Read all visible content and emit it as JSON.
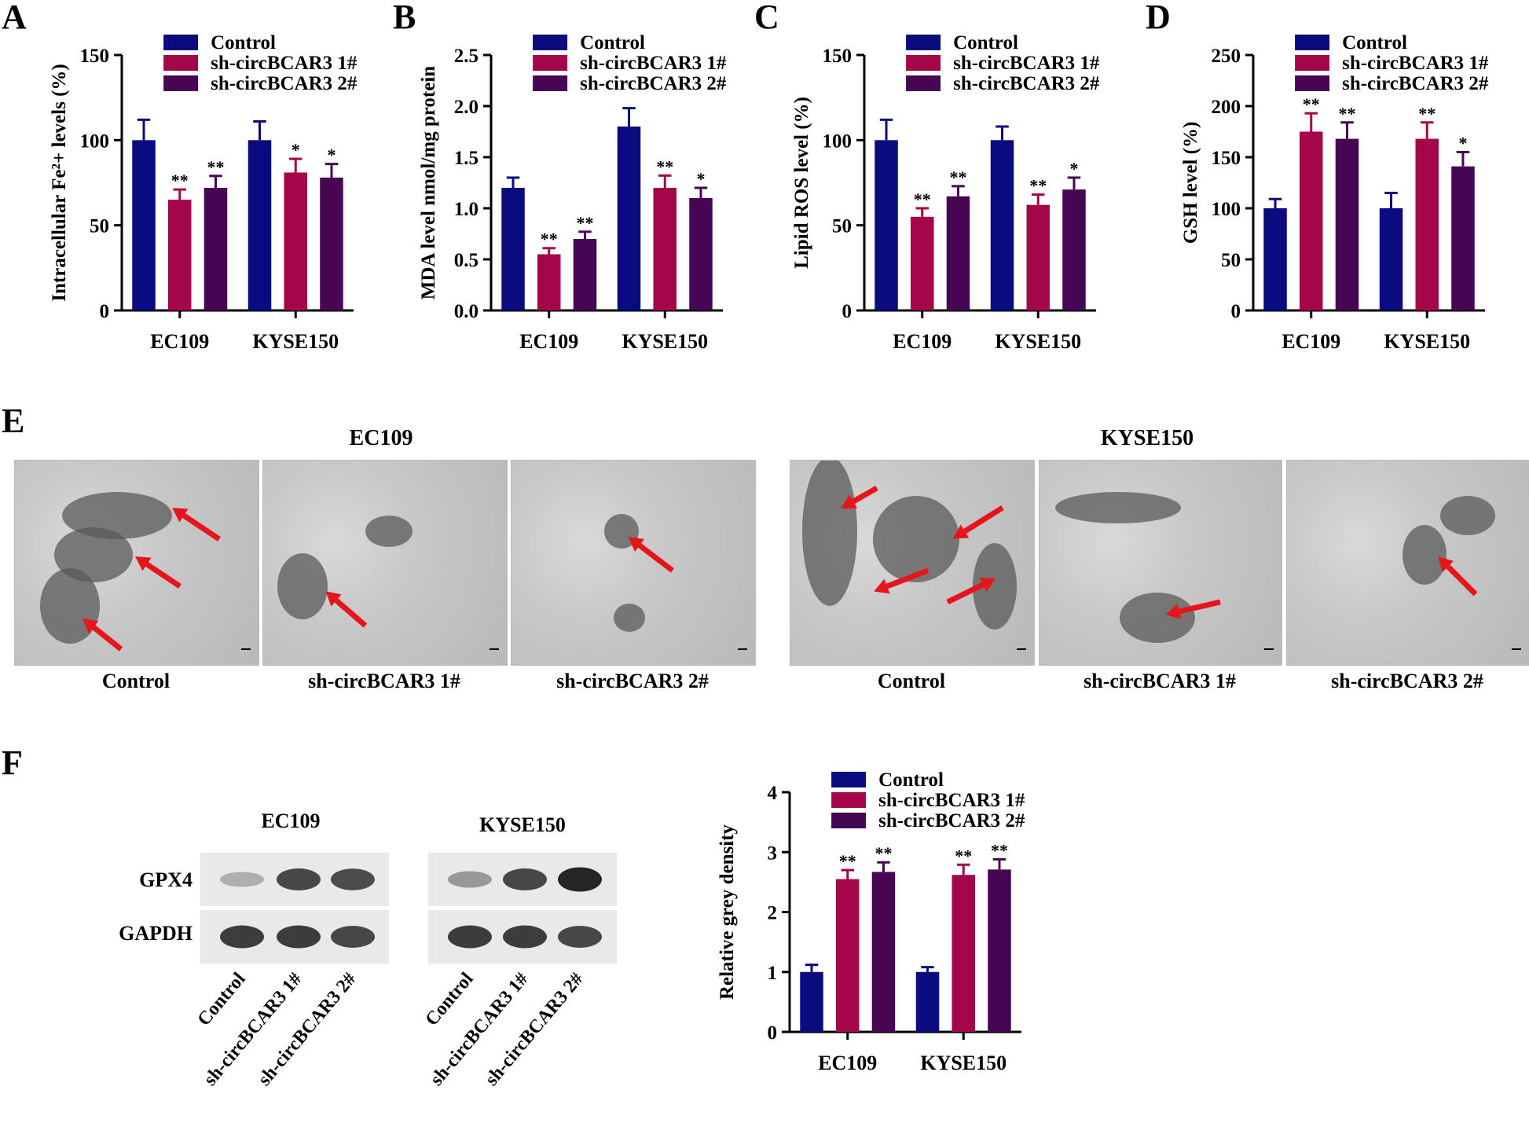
{
  "panels": {
    "A": "A",
    "B": "B",
    "C": "C",
    "D": "D",
    "E": "E",
    "F": "F"
  },
  "colors": {
    "control": "#0b0b80",
    "sh1": "#a5064a",
    "sh2": "#470654",
    "arrow": "#e8141c"
  },
  "chart_data": [
    {
      "id": "A",
      "type": "bar",
      "ylabel": "Intracellular Fe²+ levels (%)",
      "ylim": [
        0,
        150
      ],
      "yticks": [
        0,
        50,
        100,
        150
      ],
      "categories": [
        "EC109",
        "KYSE150"
      ],
      "series": [
        {
          "name": "Control",
          "values": [
            100,
            100
          ],
          "errors": [
            12,
            11
          ],
          "sig": [
            "",
            ""
          ]
        },
        {
          "name": "sh-circBCAR3 1#",
          "values": [
            65,
            81
          ],
          "errors": [
            6,
            8
          ],
          "sig": [
            "**",
            "*"
          ]
        },
        {
          "name": "sh-circBCAR3 2#",
          "values": [
            72,
            78
          ],
          "errors": [
            7,
            8
          ],
          "sig": [
            "**",
            "*"
          ]
        }
      ]
    },
    {
      "id": "B",
      "type": "bar",
      "ylabel": "MDA level nmol/mg protein",
      "ylim": [
        0,
        2.5
      ],
      "yticks": [
        0.0,
        0.5,
        1.0,
        1.5,
        2.0,
        2.5
      ],
      "categories": [
        "EC109",
        "KYSE150"
      ],
      "series": [
        {
          "name": "Control",
          "values": [
            1.2,
            1.8
          ],
          "errors": [
            0.1,
            0.18
          ],
          "sig": [
            "",
            ""
          ]
        },
        {
          "name": "sh-circBCAR3 1#",
          "values": [
            0.55,
            1.2
          ],
          "errors": [
            0.06,
            0.12
          ],
          "sig": [
            "**",
            "**"
          ]
        },
        {
          "name": "sh-circBCAR3 2#",
          "values": [
            0.7,
            1.1
          ],
          "errors": [
            0.07,
            0.1
          ],
          "sig": [
            "**",
            "*"
          ]
        }
      ]
    },
    {
      "id": "C",
      "type": "bar",
      "ylabel": "Lipid ROS level (%)",
      "ylim": [
        0,
        150
      ],
      "yticks": [
        0,
        50,
        100,
        150
      ],
      "categories": [
        "EC109",
        "KYSE150"
      ],
      "series": [
        {
          "name": "Control",
          "values": [
            100,
            100
          ],
          "errors": [
            12,
            8
          ],
          "sig": [
            "",
            ""
          ]
        },
        {
          "name": "sh-circBCAR3 1#",
          "values": [
            55,
            62
          ],
          "errors": [
            5,
            6
          ],
          "sig": [
            "**",
            "**"
          ]
        },
        {
          "name": "sh-circBCAR3 2#",
          "values": [
            67,
            71
          ],
          "errors": [
            6,
            7
          ],
          "sig": [
            "**",
            "*"
          ]
        }
      ]
    },
    {
      "id": "D",
      "type": "bar",
      "ylabel": "GSH level (%)",
      "ylim": [
        0,
        250
      ],
      "yticks": [
        0,
        50,
        100,
        150,
        200,
        250
      ],
      "categories": [
        "EC109",
        "KYSE150"
      ],
      "series": [
        {
          "name": "Control",
          "values": [
            100,
            100
          ],
          "errors": [
            9,
            15
          ],
          "sig": [
            "",
            ""
          ]
        },
        {
          "name": "sh-circBCAR3 1#",
          "values": [
            175,
            168
          ],
          "errors": [
            18,
            16
          ],
          "sig": [
            "**",
            "**"
          ]
        },
        {
          "name": "sh-circBCAR3 2#",
          "values": [
            168,
            141
          ],
          "errors": [
            16,
            14
          ],
          "sig": [
            "**",
            "*"
          ]
        }
      ]
    },
    {
      "id": "F",
      "type": "bar",
      "ylabel": "Relative grey density",
      "ylim": [
        0,
        4
      ],
      "yticks": [
        0,
        1,
        2,
        3,
        4
      ],
      "categories": [
        "EC109",
        "KYSE150"
      ],
      "series": [
        {
          "name": "Control",
          "values": [
            1.0,
            1.0
          ],
          "errors": [
            0.12,
            0.08
          ],
          "sig": [
            "",
            ""
          ]
        },
        {
          "name": "sh-circBCAR3 1#",
          "values": [
            2.55,
            2.62
          ],
          "errors": [
            0.15,
            0.17
          ],
          "sig": [
            "**",
            "**"
          ]
        },
        {
          "name": "sh-circBCAR3 2#",
          "values": [
            2.67,
            2.71
          ],
          "errors": [
            0.16,
            0.17
          ],
          "sig": [
            "**",
            "**"
          ]
        }
      ]
    }
  ],
  "em": {
    "titles": [
      "EC109",
      "KYSE150"
    ],
    "captions": [
      "Control",
      "sh-circBCAR3 1#",
      "sh-circBCAR3 2#",
      "Control",
      "sh-circBCAR3 1#",
      "sh-circBCAR3 2#"
    ]
  },
  "wb": {
    "titles": [
      "EC109",
      "KYSE150"
    ],
    "rows": [
      "GPX4",
      "GAPDH"
    ],
    "lanes": [
      "Control",
      "sh-circBCAR3 1#",
      "sh-circBCAR3 2#"
    ],
    "gpx4_intensity": [
      [
        0.35,
        0.8,
        0.78
      ],
      [
        0.45,
        0.8,
        0.95
      ]
    ],
    "gapdh_intensity": [
      [
        0.85,
        0.85,
        0.8
      ],
      [
        0.85,
        0.85,
        0.8
      ]
    ]
  }
}
